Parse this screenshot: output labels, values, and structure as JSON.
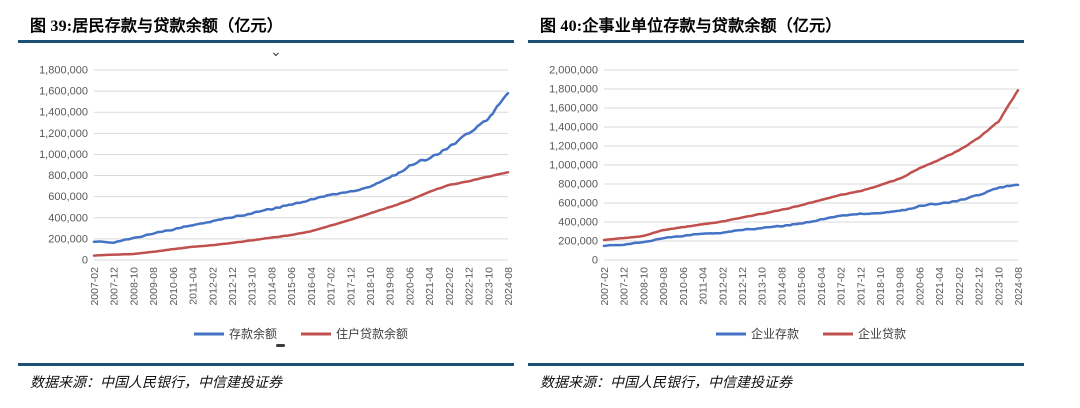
{
  "colors": {
    "accent_rule": "#1C4F76",
    "blue": "#4472C4",
    "red": "#C0504D",
    "grid": "#D9D9D9",
    "tick_text": "#595959",
    "legend_text": "#404040"
  },
  "figures": [
    {
      "title": "图 39:居民存款与贷款余额（亿元）",
      "source": "数据来源：中国人民银行，中信建投证券"
    },
    {
      "title": "图 40:企事业单位存款与贷款余额（亿元）",
      "source": "数据来源：中国人民银行，中信建投证券"
    }
  ],
  "chart_data": [
    {
      "type": "line",
      "title": "图 39:居民存款与贷款余额（亿元）",
      "xlabel": "",
      "ylabel": "",
      "ylim": [
        0,
        1800000
      ],
      "yticks": [
        0,
        200000,
        400000,
        600000,
        800000,
        1000000,
        1200000,
        1400000,
        1600000,
        1800000
      ],
      "grid": "horizontal",
      "legend_position": "bottom",
      "x_tick_labels": [
        "2007-02",
        "2007-12",
        "2008-10",
        "2009-08",
        "2010-06",
        "2011-04",
        "2012-02",
        "2012-12",
        "2013-10",
        "2014-08",
        "2015-06",
        "2016-04",
        "2017-02",
        "2017-12",
        "2018-10",
        "2019-08",
        "2020-06",
        "2021-04",
        "2022-02",
        "2022-12",
        "2023-10",
        "2024-08"
      ],
      "series": [
        {
          "name": "存款余额",
          "color_key": "blue",
          "wiggle": 30000,
          "values": [
            172000,
            168000,
            205000,
            252000,
            292000,
            328000,
            368000,
            402000,
            442000,
            482000,
            528000,
            572000,
            618000,
            648000,
            698000,
            778000,
            888000,
            968000,
            1068000,
            1198000,
            1338000,
            1580000
          ]
        },
        {
          "name": "住户贷款余额",
          "color_key": "red",
          "wiggle": 8000,
          "values": [
            42000,
            50000,
            57000,
            78000,
            103000,
            125000,
            141000,
            161000,
            186000,
            211000,
            236000,
            272000,
            326000,
            381000,
            441000,
            501000,
            566000,
            646000,
            711000,
            746000,
            791000,
            831000
          ]
        }
      ]
    },
    {
      "type": "line",
      "title": "图 40:企事业单位存款与贷款余额（亿元）",
      "xlabel": "",
      "ylabel": "",
      "ylim": [
        0,
        2000000
      ],
      "yticks": [
        0,
        200000,
        400000,
        600000,
        800000,
        1000000,
        1200000,
        1400000,
        1600000,
        1800000,
        2000000
      ],
      "grid": "horizontal",
      "legend_position": "bottom",
      "x_tick_labels": [
        "2007-02",
        "2007-12",
        "2008-10",
        "2009-08",
        "2010-06",
        "2011-04",
        "2012-02",
        "2012-12",
        "2013-10",
        "2014-08",
        "2015-06",
        "2016-04",
        "2017-02",
        "2017-12",
        "2018-10",
        "2019-08",
        "2020-06",
        "2021-04",
        "2022-02",
        "2022-12",
        "2023-10",
        "2024-08"
      ],
      "series": [
        {
          "name": "企业存款",
          "color_key": "blue",
          "wiggle": 26000,
          "values": [
            148000,
            163000,
            186000,
            231000,
            256000,
            276000,
            286000,
            316000,
            336000,
            356000,
            386000,
            426000,
            466000,
            486000,
            496000,
            516000,
            566000,
            596000,
            626000,
            681000,
            761000,
            791000
          ]
        },
        {
          "name": "企业贷款",
          "color_key": "red",
          "wiggle": 12000,
          "values": [
            211000,
            229000,
            253000,
            316000,
            346000,
            376000,
            406000,
            446000,
            486000,
            526000,
            576000,
            631000,
            686000,
            726000,
            786000,
            856000,
            966000,
            1056000,
            1156000,
            1286000,
            1456000,
            1786000
          ]
        }
      ]
    }
  ]
}
